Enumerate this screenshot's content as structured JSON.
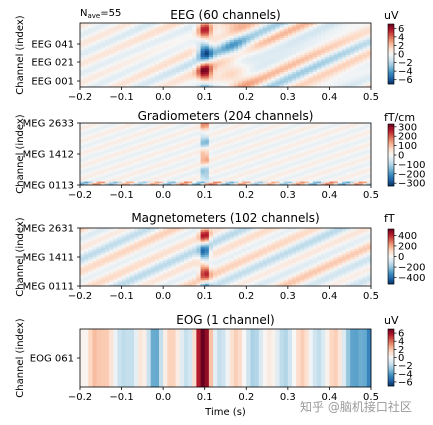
{
  "figure": {
    "nave_label": "N",
    "nave_sub": "ave",
    "nave_value": "=55",
    "xlabel": "Time (s)",
    "watermark": "知乎 @脑机接口社区"
  },
  "colormap": {
    "name": "RdBu_r",
    "neg": "#053061",
    "mid": "#f7f7f7",
    "pos": "#67001f"
  },
  "chart_data": [
    {
      "type": "heatmap",
      "title": "EEG (60 channels)",
      "ylabel": "Channel (index)",
      "unit": "uV",
      "xlim": [
        -0.2,
        0.5
      ],
      "xticks": [
        "−0.2",
        "−0.1",
        "0.0",
        "0.1",
        "0.2",
        "0.3",
        "0.4",
        "0.5"
      ],
      "yticks": [
        "EEG 041",
        "EEG 021",
        "EEG 001"
      ],
      "colorbar_ticks": [
        "6",
        "4",
        "2",
        "0",
        "−2",
        "−4",
        "−6"
      ],
      "colorbar_range": [
        -7,
        7
      ]
    },
    {
      "type": "heatmap",
      "title": "Gradiometers (204 channels)",
      "ylabel": "Channel (index)",
      "unit": "fT/cm",
      "xlim": [
        -0.2,
        0.5
      ],
      "xticks": [
        "−0.2",
        "−0.1",
        "0.0",
        "0.1",
        "0.2",
        "0.3",
        "0.4",
        "0.5"
      ],
      "yticks": [
        "MEG 2633",
        "MEG 1412",
        "MEG 0113"
      ],
      "colorbar_ticks": [
        "300",
        "200",
        "100",
        "0",
        "−100",
        "−200",
        "−300"
      ],
      "colorbar_range": [
        -330,
        330
      ]
    },
    {
      "type": "heatmap",
      "title": "Magnetometers (102 channels)",
      "ylabel": "Channel (index)",
      "unit": "fT",
      "xlim": [
        -0.2,
        0.5
      ],
      "xticks": [
        "−0.2",
        "−0.1",
        "0.0",
        "0.1",
        "0.2",
        "0.3",
        "0.4",
        "0.5"
      ],
      "yticks": [
        "MEG 2631",
        "MEG 1411",
        "MEG 0111"
      ],
      "colorbar_ticks": [
        "400",
        "200",
        "0",
        "−200",
        "−400"
      ],
      "colorbar_range": [
        -520,
        520
      ]
    },
    {
      "type": "heatmap",
      "title": "EOG (1 channel)",
      "ylabel": "Channel (index)",
      "unit": "uV",
      "xlim": [
        -0.2,
        0.5
      ],
      "xticks": [
        "−0.2",
        "−0.1",
        "0.0",
        "0.1",
        "0.2",
        "0.3",
        "0.4",
        "0.5"
      ],
      "yticks": [
        "EOG 061"
      ],
      "colorbar_ticks": [
        "6",
        "4",
        "2",
        "0",
        "−2",
        "−4",
        "−6"
      ],
      "colorbar_range": [
        -7,
        7
      ]
    }
  ]
}
